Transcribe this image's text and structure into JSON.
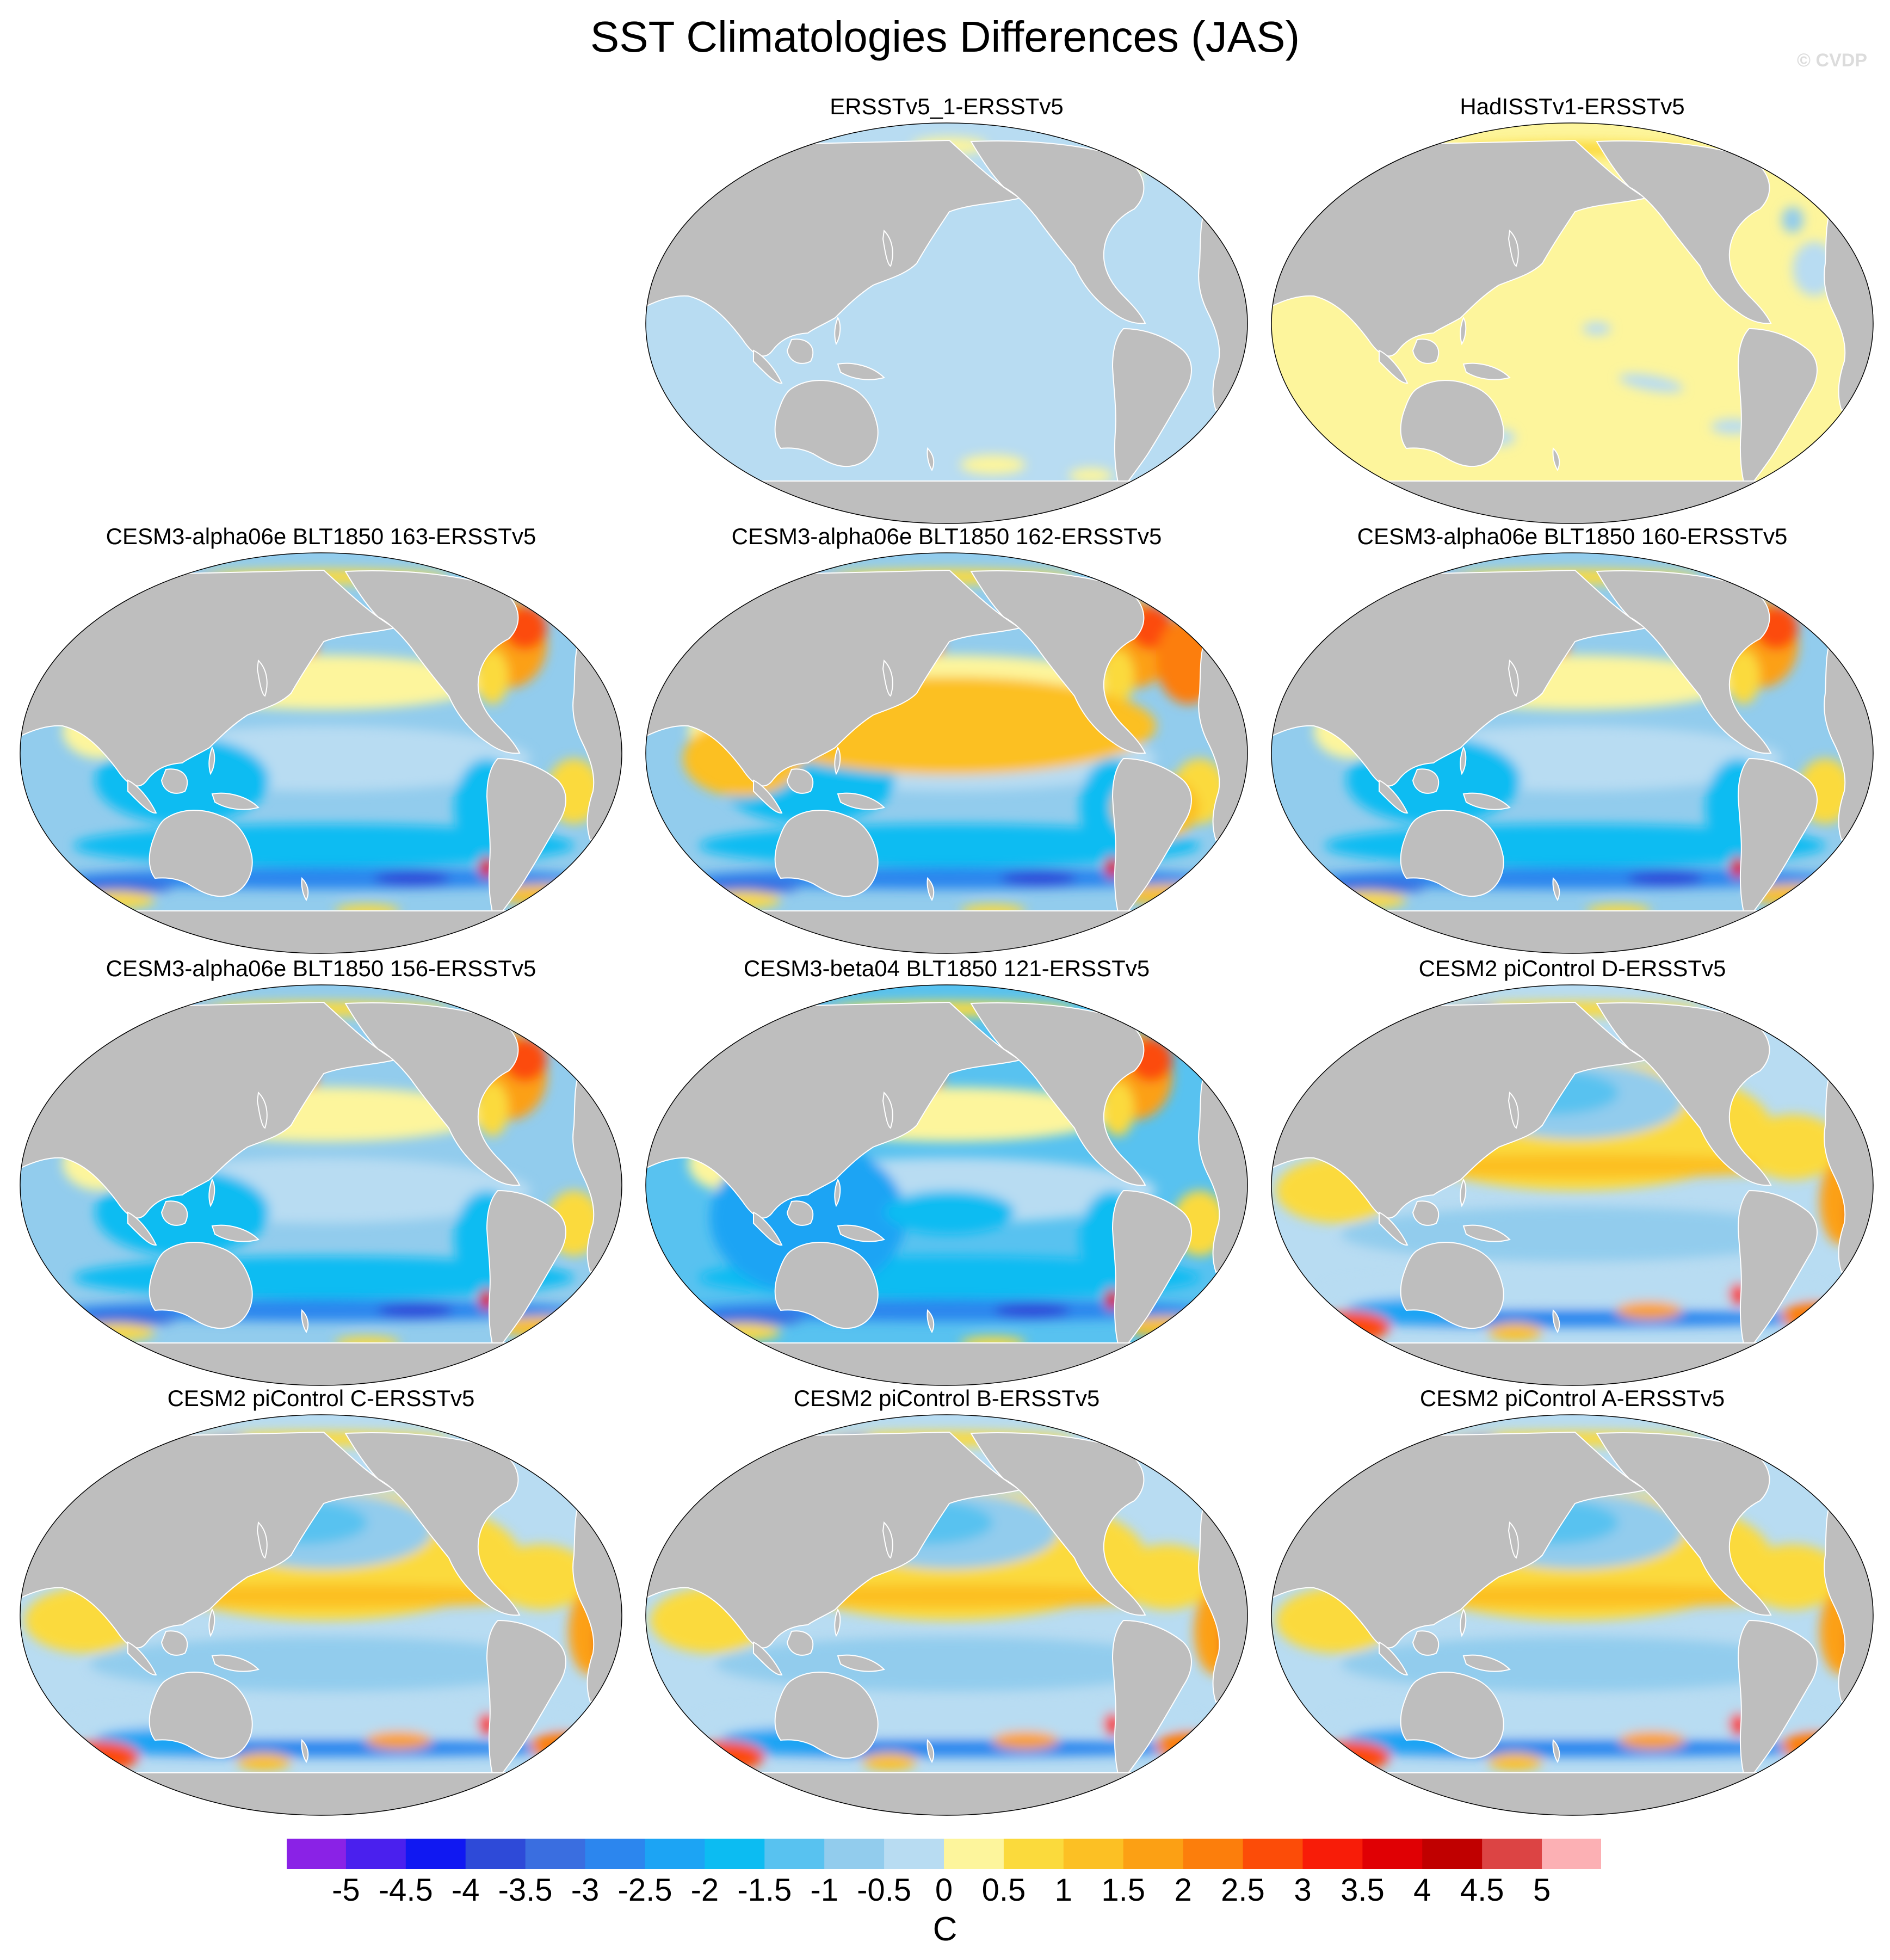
{
  "title": "SST Climatologies Differences (JAS)",
  "watermark": "© CVDP",
  "units": "C",
  "colorbar": {
    "labels": [
      "-5",
      "-4.5",
      "-4",
      "-3.5",
      "-3",
      "-2.5",
      "-2",
      "-1.5",
      "-1",
      "-0.5",
      "0",
      "0.5",
      "1",
      "1.5",
      "2",
      "2.5",
      "3",
      "3.5",
      "4",
      "4.5",
      "5"
    ],
    "colors": [
      "#8a22e6",
      "#4a20ee",
      "#1018f2",
      "#2e4ad8",
      "#3a6ee0",
      "#2c86ee",
      "#1ca4f4",
      "#0cbcf2",
      "#58c2f0",
      "#92cced",
      "#b8dcf2",
      "#fdf59c",
      "#fbda3c",
      "#fcc024",
      "#fca014",
      "#fc7e0c",
      "#fc4c08",
      "#f81c08",
      "#e00004",
      "#c00000",
      "#dc4444",
      "#fcb0b4"
    ]
  },
  "land_color": "#bebebe",
  "panels": [
    {
      "title": "ERSSTv5_1-ERSSTv5",
      "pattern": "uniform-cool"
    },
    {
      "title": "HadISSTv1-ERSSTv5",
      "pattern": "uniform-warm"
    },
    {
      "title": "CESM3-alpha06e BLT1850 163-ERSSTv5",
      "pattern": "cesm3"
    },
    {
      "title": "CESM3-alpha06e BLT1850 162-ERSSTv5",
      "pattern": "cesm3-warm"
    },
    {
      "title": "CESM3-alpha06e BLT1850 160-ERSSTv5",
      "pattern": "cesm3"
    },
    {
      "title": "CESM3-alpha06e BLT1850 156-ERSSTv5",
      "pattern": "cesm3"
    },
    {
      "title": "CESM3-beta04 BLT1850 121-ERSSTv5",
      "pattern": "cesm3-cool"
    },
    {
      "title": "CESM2 piControl D-ERSSTv5",
      "pattern": "cesm2"
    },
    {
      "title": "CESM2 piControl C-ERSSTv5",
      "pattern": "cesm2"
    },
    {
      "title": "CESM2 piControl B-ERSSTv5",
      "pattern": "cesm2"
    },
    {
      "title": "CESM2 piControl A-ERSSTv5",
      "pattern": "cesm2"
    }
  ]
}
